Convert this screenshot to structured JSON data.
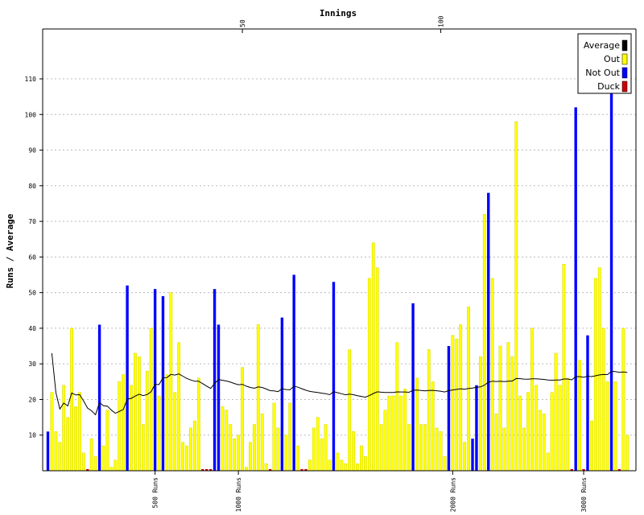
{
  "chart_data": {
    "type": "bar",
    "xlabel": "Innings",
    "ylabel": "Runs / Average",
    "ylim": [
      0,
      124
    ],
    "y_ticks": [
      10,
      20,
      30,
      40,
      50,
      60,
      70,
      80,
      90,
      100,
      110
    ],
    "innings_ticks": [
      50,
      100
    ],
    "x_range": [
      1,
      150
    ],
    "run_milestones": [
      {
        "label": "500 Runs",
        "innings": 28
      },
      {
        "label": "1000 Runs",
        "innings": 49
      },
      {
        "label": "2000 Runs",
        "innings": 103
      },
      {
        "label": "3000 Runs",
        "innings": 136
      }
    ],
    "grid": true,
    "legend": {
      "placement": "top-right",
      "entries": [
        {
          "label": "Average",
          "color": "#000000"
        },
        {
          "label": "Out",
          "color": "#ffff00"
        },
        {
          "label": "Not Out",
          "color": "#0000ff"
        },
        {
          "label": "Duck",
          "color": "#cc0000"
        }
      ]
    },
    "colors": {
      "out": "#ffff00",
      "out_edge": "#cccc00",
      "not_out": "#0000ff",
      "duck": "#cc0000",
      "average": "#000000",
      "grid": "#bbbbbb"
    },
    "innings": [
      {
        "runs": 11,
        "status": "not_out"
      },
      {
        "runs": 22,
        "status": "out"
      },
      {
        "runs": 11,
        "status": "out"
      },
      {
        "runs": 8,
        "status": "out"
      },
      {
        "runs": 24,
        "status": "out"
      },
      {
        "runs": 15,
        "status": "out"
      },
      {
        "runs": 40,
        "status": "out"
      },
      {
        "runs": 18,
        "status": "out"
      },
      {
        "runs": 22,
        "status": "out"
      },
      {
        "runs": 5,
        "status": "out"
      },
      {
        "runs": 0,
        "status": "duck"
      },
      {
        "runs": 9,
        "status": "out"
      },
      {
        "runs": 4,
        "status": "out"
      },
      {
        "runs": 41,
        "status": "not_out"
      },
      {
        "runs": 7,
        "status": "out"
      },
      {
        "runs": 17,
        "status": "out"
      },
      {
        "runs": 1,
        "status": "out"
      },
      {
        "runs": 3,
        "status": "out"
      },
      {
        "runs": 25,
        "status": "out"
      },
      {
        "runs": 27,
        "status": "out"
      },
      {
        "runs": 52,
        "status": "not_out"
      },
      {
        "runs": 24,
        "status": "out"
      },
      {
        "runs": 33,
        "status": "out"
      },
      {
        "runs": 32,
        "status": "out"
      },
      {
        "runs": 13,
        "status": "out"
      },
      {
        "runs": 28,
        "status": "out"
      },
      {
        "runs": 40,
        "status": "out"
      },
      {
        "runs": 51,
        "status": "not_out"
      },
      {
        "runs": 21,
        "status": "out"
      },
      {
        "runs": 49,
        "status": "not_out"
      },
      {
        "runs": 27,
        "status": "out"
      },
      {
        "runs": 50,
        "status": "out"
      },
      {
        "runs": 22,
        "status": "out"
      },
      {
        "runs": 36,
        "status": "out"
      },
      {
        "runs": 8,
        "status": "out"
      },
      {
        "runs": 7,
        "status": "out"
      },
      {
        "runs": 12,
        "status": "out"
      },
      {
        "runs": 14,
        "status": "out"
      },
      {
        "runs": 26,
        "status": "out"
      },
      {
        "runs": 0,
        "status": "duck"
      },
      {
        "runs": 0,
        "status": "duck"
      },
      {
        "runs": 0,
        "status": "duck"
      },
      {
        "runs": 51,
        "status": "not_out"
      },
      {
        "runs": 41,
        "status": "not_out"
      },
      {
        "runs": 18,
        "status": "out"
      },
      {
        "runs": 17,
        "status": "out"
      },
      {
        "runs": 13,
        "status": "out"
      },
      {
        "runs": 9,
        "status": "out"
      },
      {
        "runs": 10,
        "status": "out"
      },
      {
        "runs": 29,
        "status": "out"
      },
      {
        "runs": 1,
        "status": "out"
      },
      {
        "runs": 8,
        "status": "out"
      },
      {
        "runs": 13,
        "status": "out"
      },
      {
        "runs": 41,
        "status": "out"
      },
      {
        "runs": 16,
        "status": "out"
      },
      {
        "runs": 2,
        "status": "out"
      },
      {
        "runs": 0,
        "status": "duck"
      },
      {
        "runs": 19,
        "status": "out"
      },
      {
        "runs": 12,
        "status": "out"
      },
      {
        "runs": 43,
        "status": "not_out"
      },
      {
        "runs": 10,
        "status": "out"
      },
      {
        "runs": 19,
        "status": "out"
      },
      {
        "runs": 55,
        "status": "not_out"
      },
      {
        "runs": 7,
        "status": "out"
      },
      {
        "runs": 0,
        "status": "duck"
      },
      {
        "runs": 0,
        "status": "duck"
      },
      {
        "runs": 3,
        "status": "out"
      },
      {
        "runs": 12,
        "status": "out"
      },
      {
        "runs": 15,
        "status": "out"
      },
      {
        "runs": 9,
        "status": "out"
      },
      {
        "runs": 13,
        "status": "out"
      },
      {
        "runs": 3,
        "status": "out"
      },
      {
        "runs": 53,
        "status": "not_out"
      },
      {
        "runs": 5,
        "status": "out"
      },
      {
        "runs": 3,
        "status": "out"
      },
      {
        "runs": 2,
        "status": "out"
      },
      {
        "runs": 34,
        "status": "out"
      },
      {
        "runs": 11,
        "status": "out"
      },
      {
        "runs": 2,
        "status": "out"
      },
      {
        "runs": 7,
        "status": "out"
      },
      {
        "runs": 4,
        "status": "out"
      },
      {
        "runs": 54,
        "status": "out"
      },
      {
        "runs": 64,
        "status": "out"
      },
      {
        "runs": 57,
        "status": "out"
      },
      {
        "runs": 13,
        "status": "out"
      },
      {
        "runs": 17,
        "status": "out"
      },
      {
        "runs": 21,
        "status": "out"
      },
      {
        "runs": 21,
        "status": "out"
      },
      {
        "runs": 36,
        "status": "out"
      },
      {
        "runs": 21,
        "status": "out"
      },
      {
        "runs": 23,
        "status": "out"
      },
      {
        "runs": 13,
        "status": "out"
      },
      {
        "runs": 47,
        "status": "not_out"
      },
      {
        "runs": 26,
        "status": "out"
      },
      {
        "runs": 13,
        "status": "out"
      },
      {
        "runs": 13,
        "status": "out"
      },
      {
        "runs": 34,
        "status": "out"
      },
      {
        "runs": 25,
        "status": "out"
      },
      {
        "runs": 12,
        "status": "out"
      },
      {
        "runs": 11,
        "status": "out"
      },
      {
        "runs": 4,
        "status": "out"
      },
      {
        "runs": 35,
        "status": "not_out"
      },
      {
        "runs": 38,
        "status": "out"
      },
      {
        "runs": 37,
        "status": "out"
      },
      {
        "runs": 41,
        "status": "out"
      },
      {
        "runs": 8,
        "status": "out"
      },
      {
        "runs": 46,
        "status": "out"
      },
      {
        "runs": 9,
        "status": "not_out"
      },
      {
        "runs": 24,
        "status": "not_out"
      },
      {
        "runs": 32,
        "status": "out"
      },
      {
        "runs": 72,
        "status": "out"
      },
      {
        "runs": 78,
        "status": "not_out"
      },
      {
        "runs": 54,
        "status": "out"
      },
      {
        "runs": 16,
        "status": "out"
      },
      {
        "runs": 35,
        "status": "out"
      },
      {
        "runs": 12,
        "status": "out"
      },
      {
        "runs": 36,
        "status": "out"
      },
      {
        "runs": 32,
        "status": "out"
      },
      {
        "runs": 98,
        "status": "out"
      },
      {
        "runs": 21,
        "status": "out"
      },
      {
        "runs": 12,
        "status": "out"
      },
      {
        "runs": 22,
        "status": "out"
      },
      {
        "runs": 40,
        "status": "out"
      },
      {
        "runs": 24,
        "status": "out"
      },
      {
        "runs": 17,
        "status": "out"
      },
      {
        "runs": 16,
        "status": "out"
      },
      {
        "runs": 5,
        "status": "out"
      },
      {
        "runs": 22,
        "status": "out"
      },
      {
        "runs": 33,
        "status": "out"
      },
      {
        "runs": 24,
        "status": "out"
      },
      {
        "runs": 58,
        "status": "out"
      },
      {
        "runs": 26,
        "status": "out"
      },
      {
        "runs": 0,
        "status": "duck"
      },
      {
        "runs": 102,
        "status": "not_out"
      },
      {
        "runs": 31,
        "status": "out"
      },
      {
        "runs": 0,
        "status": "duck"
      },
      {
        "runs": 38,
        "status": "not_out"
      },
      {
        "runs": 14,
        "status": "out"
      },
      {
        "runs": 54,
        "status": "out"
      },
      {
        "runs": 57,
        "status": "out"
      },
      {
        "runs": 40,
        "status": "out"
      },
      {
        "runs": 25,
        "status": "out"
      },
      {
        "runs": 110,
        "status": "not_out"
      },
      {
        "runs": 25,
        "status": "out"
      },
      {
        "runs": 0,
        "status": "duck"
      },
      {
        "runs": 40,
        "status": "out"
      },
      {
        "runs": 10,
        "status": "out"
      }
    ]
  }
}
